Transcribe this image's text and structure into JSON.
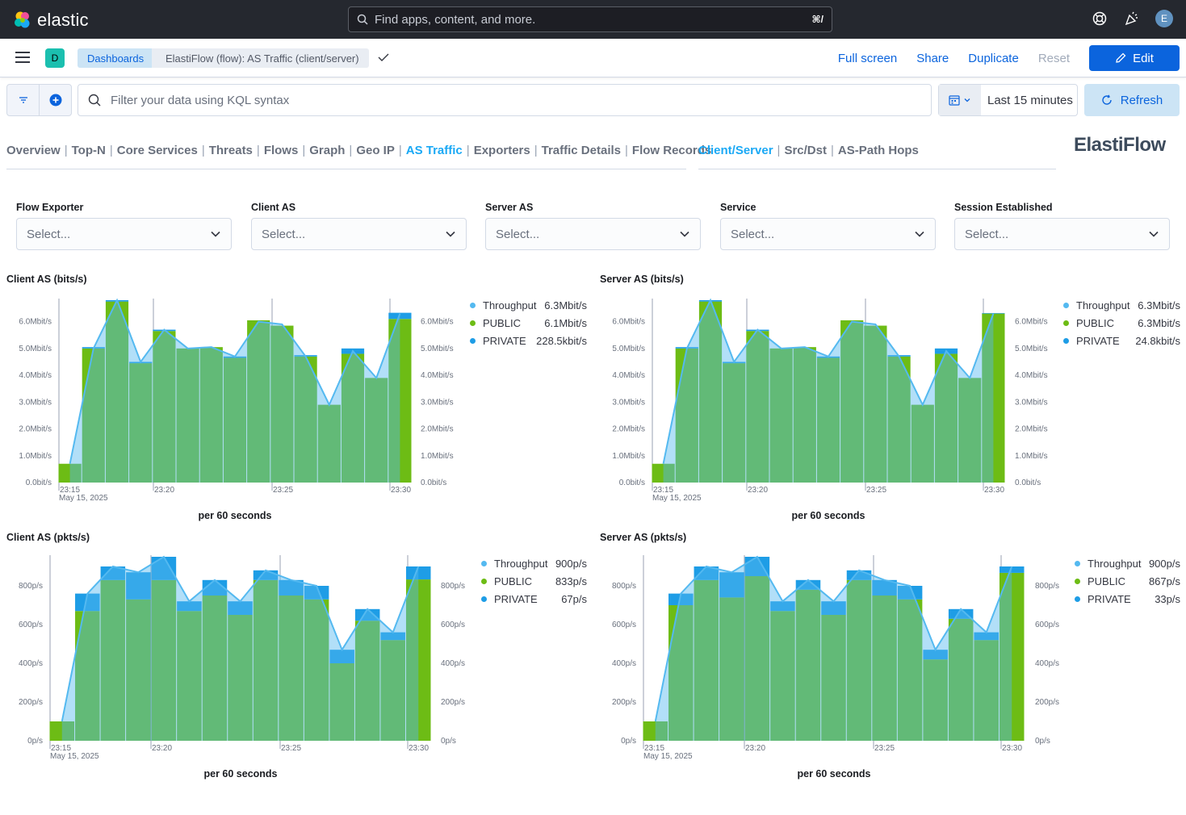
{
  "header": {
    "app_name": "elastic",
    "search_placeholder": "Find apps, content, and more.",
    "search_shortcut": "⌘/",
    "avatar_initial": "E"
  },
  "nav": {
    "space_initial": "D",
    "breadcrumbs": [
      "Dashboards",
      "ElastiFlow (flow): AS Traffic (client/server)"
    ],
    "actions": [
      "Full screen",
      "Share",
      "Duplicate",
      "Reset"
    ],
    "edit_label": "Edit"
  },
  "query": {
    "placeholder": "Filter your data using KQL syntax",
    "time_range": "Last 15 minutes",
    "refresh_label": "Refresh"
  },
  "tabs_left": [
    "Overview",
    "Top-N",
    "Core Services",
    "Threats",
    "Flows",
    "Graph",
    "Geo IP",
    "AS Traffic",
    "Exporters",
    "Traffic Details",
    "Flow Records"
  ],
  "tabs_left_active": "AS Traffic",
  "tabs_right": [
    "Client/Server",
    "Src/Dst",
    "AS-Path Hops"
  ],
  "tabs_right_active": "Client/Server",
  "brand_logo": "ElastiFlow",
  "controls": [
    {
      "label": "Flow Exporter",
      "value": "Select..."
    },
    {
      "label": "Client AS",
      "value": "Select..."
    },
    {
      "label": "Server AS",
      "value": "Select..."
    },
    {
      "label": "Service",
      "value": "Select..."
    },
    {
      "label": "Session Established",
      "value": "Select..."
    }
  ],
  "colors": {
    "throughput": "#54b9f0",
    "public": "#6dbc15",
    "private": "#1e9de6",
    "overlap": "#54c384"
  },
  "chart_data": [
    {
      "type": "bar",
      "title": "Client AS (bits/s)",
      "xlabel": "per 60 seconds",
      "x_ticks": [
        "23:15",
        "23:20",
        "23:25",
        "23:30"
      ],
      "x_date": "May 15, 2025",
      "y_ticks": [
        "0.0bit/s",
        "1.0Mbit/s",
        "2.0Mbit/s",
        "3.0Mbit/s",
        "4.0Mbit/s",
        "5.0Mbit/s",
        "6.0Mbit/s"
      ],
      "ylim": [
        0,
        6.8
      ],
      "unit": "Mbit/s",
      "series": [
        {
          "name": "Throughput",
          "legend_value": "6.3Mbit/s",
          "type": "area",
          "values": [
            0.7,
            5.0,
            6.8,
            4.5,
            5.7,
            5.0,
            5.05,
            4.7,
            6.0,
            5.9,
            4.7,
            2.9,
            4.9,
            3.9,
            6.3
          ]
        },
        {
          "name": "PUBLIC",
          "legend_value": "6.1Mbit/s",
          "type": "bar",
          "values": [
            0.7,
            5.0,
            6.75,
            4.45,
            5.65,
            5.0,
            5.05,
            4.65,
            6.05,
            5.85,
            4.7,
            2.9,
            4.8,
            3.9,
            6.1
          ]
        },
        {
          "name": "PRIVATE",
          "legend_value": "228.5kbit/s",
          "type": "bar",
          "values": [
            0,
            0.05,
            0.05,
            0.05,
            0.05,
            0,
            0,
            0.05,
            0,
            0,
            0.05,
            0,
            0.2,
            0,
            0.23
          ]
        }
      ]
    },
    {
      "type": "bar",
      "title": "Server AS (bits/s)",
      "xlabel": "per 60 seconds",
      "x_ticks": [
        "23:15",
        "23:20",
        "23:25",
        "23:30"
      ],
      "x_date": "May 15, 2025",
      "y_ticks": [
        "0.0bit/s",
        "1.0Mbit/s",
        "2.0Mbit/s",
        "3.0Mbit/s",
        "4.0Mbit/s",
        "5.0Mbit/s",
        "6.0Mbit/s"
      ],
      "ylim": [
        0,
        6.8
      ],
      "unit": "Mbit/s",
      "series": [
        {
          "name": "Throughput",
          "legend_value": "6.3Mbit/s",
          "type": "area",
          "values": [
            0.7,
            5.0,
            6.8,
            4.5,
            5.7,
            5.0,
            5.05,
            4.7,
            6.0,
            5.9,
            4.7,
            2.9,
            4.9,
            3.9,
            6.3
          ]
        },
        {
          "name": "PUBLIC",
          "legend_value": "6.3Mbit/s",
          "type": "bar",
          "values": [
            0.7,
            5.0,
            6.75,
            4.45,
            5.65,
            5.0,
            5.05,
            4.65,
            6.05,
            5.85,
            4.7,
            2.9,
            4.8,
            3.9,
            6.3
          ]
        },
        {
          "name": "PRIVATE",
          "legend_value": "24.8kbit/s",
          "type": "bar",
          "values": [
            0,
            0.05,
            0.05,
            0.05,
            0.05,
            0,
            0,
            0.05,
            0,
            0,
            0.05,
            0,
            0.2,
            0,
            0.02
          ]
        }
      ]
    },
    {
      "type": "bar",
      "title": "Client AS (pkts/s)",
      "xlabel": "per 60 seconds",
      "x_ticks": [
        "23:15",
        "23:20",
        "23:25",
        "23:30"
      ],
      "x_date": "May 15, 2025",
      "y_ticks": [
        "0p/s",
        "200p/s",
        "400p/s",
        "600p/s",
        "800p/s"
      ],
      "ylim": [
        0,
        950
      ],
      "unit": "p/s",
      "series": [
        {
          "name": "Throughput",
          "legend_value": "900p/s",
          "type": "area",
          "values": [
            100,
            760,
            900,
            870,
            950,
            720,
            830,
            720,
            880,
            830,
            800,
            470,
            680,
            560,
            900
          ]
        },
        {
          "name": "PUBLIC",
          "legend_value": "833p/s",
          "type": "bar",
          "values": [
            100,
            670,
            830,
            730,
            830,
            670,
            750,
            650,
            830,
            750,
            730,
            400,
            620,
            520,
            833
          ]
        },
        {
          "name": "PRIVATE",
          "legend_value": "67p/s",
          "type": "bar",
          "values": [
            0,
            90,
            70,
            140,
            120,
            50,
            80,
            70,
            50,
            80,
            70,
            70,
            60,
            40,
            67
          ]
        }
      ]
    },
    {
      "type": "bar",
      "title": "Server AS (pkts/s)",
      "xlabel": "per 60 seconds",
      "x_ticks": [
        "23:15",
        "23:20",
        "23:25",
        "23:30"
      ],
      "x_date": "May 15, 2025",
      "y_ticks": [
        "0p/s",
        "200p/s",
        "400p/s",
        "600p/s",
        "800p/s"
      ],
      "ylim": [
        0,
        950
      ],
      "unit": "p/s",
      "series": [
        {
          "name": "Throughput",
          "legend_value": "900p/s",
          "type": "area",
          "values": [
            100,
            760,
            900,
            870,
            950,
            720,
            830,
            720,
            880,
            830,
            800,
            470,
            680,
            560,
            900
          ]
        },
        {
          "name": "PUBLIC",
          "legend_value": "867p/s",
          "type": "bar",
          "values": [
            100,
            700,
            830,
            740,
            850,
            670,
            780,
            650,
            830,
            750,
            730,
            420,
            630,
            520,
            867
          ]
        },
        {
          "name": "PRIVATE",
          "legend_value": "33p/s",
          "type": "bar",
          "values": [
            0,
            60,
            70,
            130,
            100,
            50,
            50,
            70,
            50,
            80,
            70,
            50,
            50,
            40,
            33
          ]
        }
      ]
    }
  ]
}
